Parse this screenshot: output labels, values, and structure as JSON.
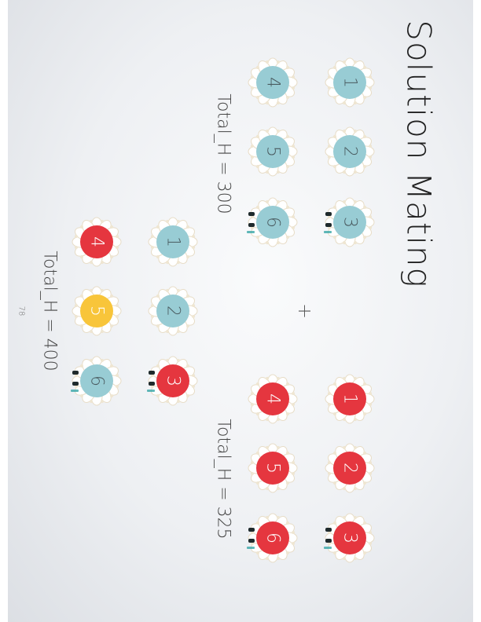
{
  "slide": {
    "title": "Solution Mating",
    "operator": "+",
    "page_number": "78"
  },
  "colors": {
    "blue": "#98ccd4",
    "red": "#e5363f",
    "yellow": "#f8c53a"
  },
  "parent_a": {
    "total": "Total_H = 300",
    "members": [
      {
        "label": "1",
        "color": "blue"
      },
      {
        "label": "2",
        "color": "blue"
      },
      {
        "label": "3",
        "color": "blue"
      },
      {
        "label": "4",
        "color": "blue"
      },
      {
        "label": "5",
        "color": "blue"
      },
      {
        "label": "6",
        "color": "blue"
      }
    ]
  },
  "parent_b": {
    "total": "Total_H = 325",
    "members": [
      {
        "label": "1",
        "color": "red"
      },
      {
        "label": "2",
        "color": "red"
      },
      {
        "label": "3",
        "color": "red"
      },
      {
        "label": "4",
        "color": "red"
      },
      {
        "label": "5",
        "color": "red"
      },
      {
        "label": "6",
        "color": "red"
      }
    ]
  },
  "child": {
    "total": "Total_H = 400",
    "members": [
      {
        "label": "1",
        "color": "blue"
      },
      {
        "label": "2",
        "color": "blue"
      },
      {
        "label": "3",
        "color": "red"
      },
      {
        "label": "4",
        "color": "red"
      },
      {
        "label": "5",
        "color": "yellow"
      },
      {
        "label": "6",
        "color": "blue"
      }
    ]
  }
}
